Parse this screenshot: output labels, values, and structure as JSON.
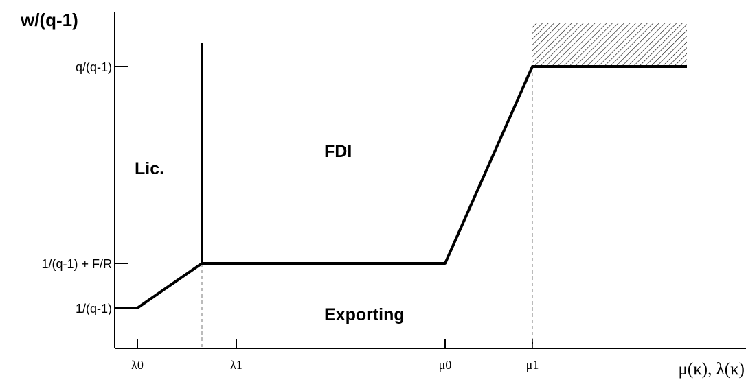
{
  "axes": {
    "y_label": "w/(q-1)",
    "x_label": "μ(κ), λ(κ)"
  },
  "y_ticks": [
    "q/(q-1)",
    "1/(q-1) + F/R",
    "1/(q-1)"
  ],
  "x_ticks": [
    "λ0",
    "λ1",
    "μ0",
    "μ1"
  ],
  "regions": [
    "Lic.",
    "FDI",
    "Exporting"
  ]
}
